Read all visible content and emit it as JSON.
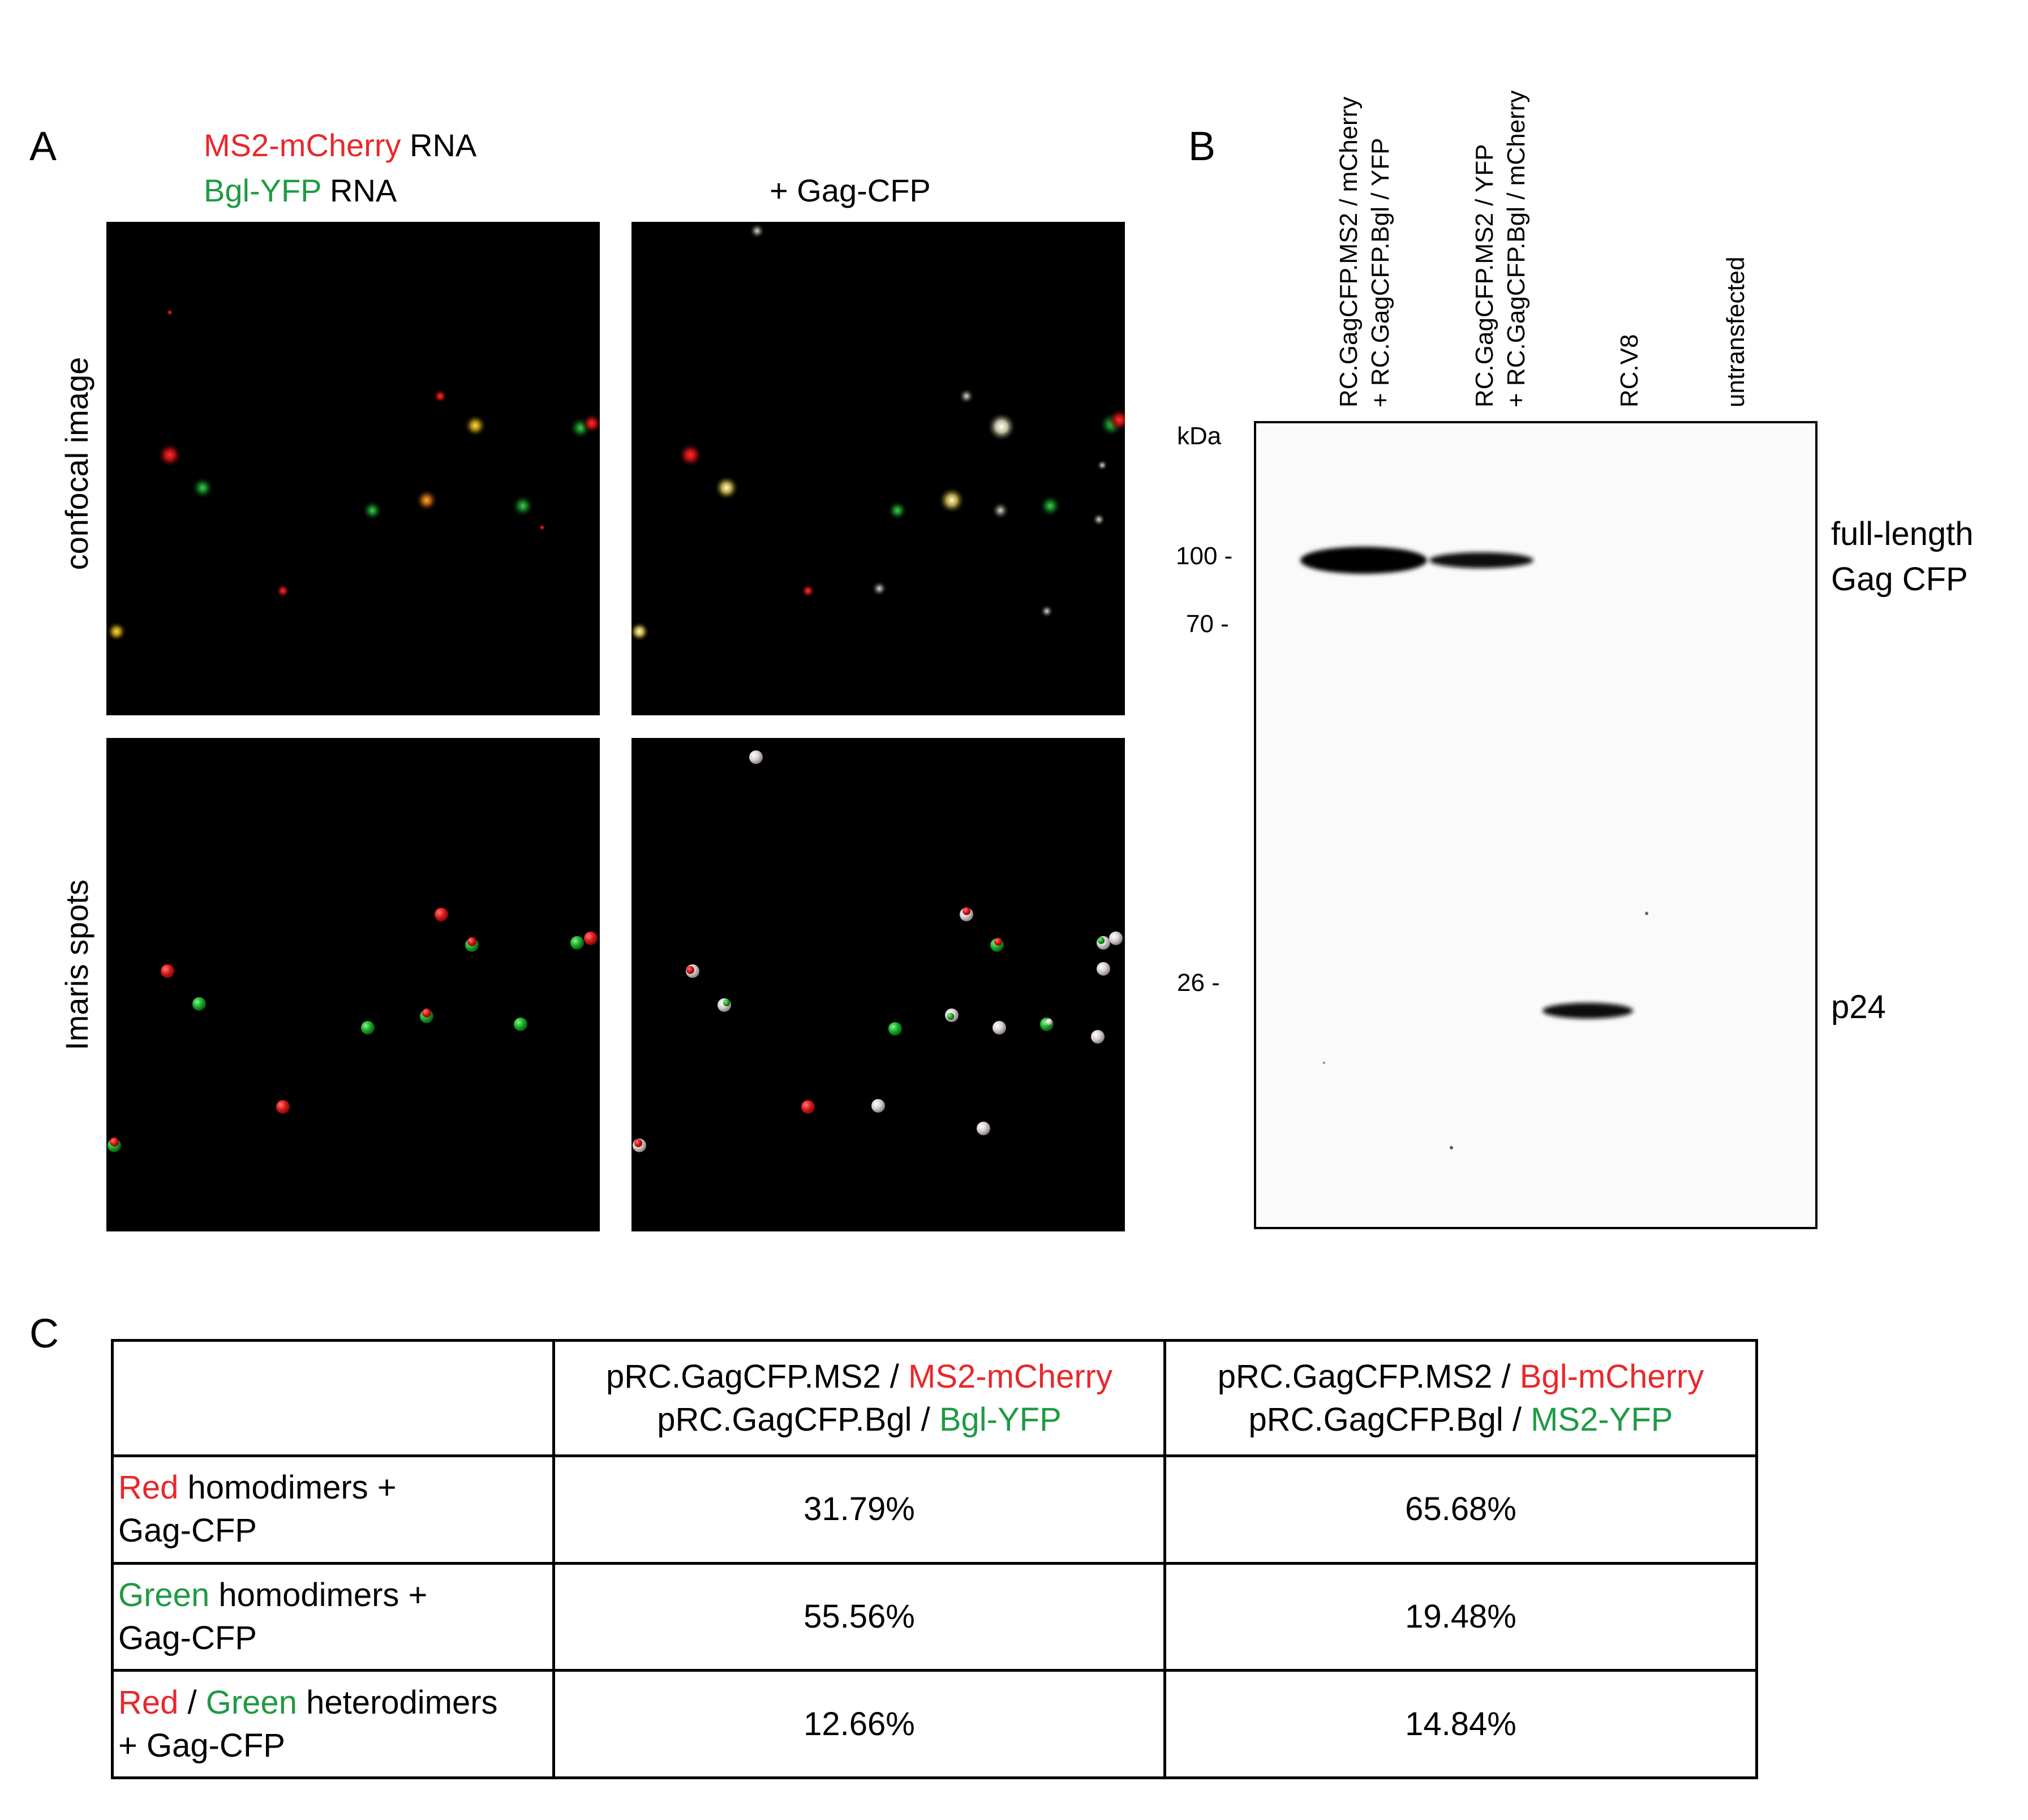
{
  "panel_a": {
    "letter": "A",
    "legend_line1": {
      "colored": "MS2-mCherry",
      "rest": " RNA"
    },
    "legend_line2": {
      "colored": "Bgl-YFP",
      "rest": " RNA"
    },
    "col2_header": "+ Gag-CFP",
    "row1_label": "confocal image",
    "row2_label": "Imaris spots",
    "colors": {
      "red": "#e8282b",
      "green": "#1f9a43",
      "background": "#000000"
    }
  },
  "panel_b": {
    "letter": "B",
    "lanes": [
      {
        "line1": "RC.GagCFP.MS2 / mCherry",
        "line2": "+ RC.GagCFP.Bgl / YFP"
      },
      {
        "line1": "RC.GagCFP.MS2 / YFP",
        "line2": "+ RC.GagCFP.Bgl / mCherry"
      },
      {
        "line1": "RC.V8",
        "line2": ""
      },
      {
        "line1": "untransfected",
        "line2": ""
      }
    ],
    "kda_label": "kDa",
    "markers": [
      {
        "label": "100 -",
        "kda": 100
      },
      {
        "label": "70 -",
        "kda": 70
      },
      {
        "label": "26 -",
        "kda": 26
      }
    ],
    "bands": [
      {
        "line1": "full-length",
        "line2": "Gag CFP"
      },
      {
        "line1": "p24",
        "line2": ""
      }
    ]
  },
  "panel_c": {
    "letter": "C",
    "header_col1": {
      "line1_plain": "pRC.GagCFP.MS2 / ",
      "line1_colored": "MS2-mCherry",
      "line2_plain": "pRC.GagCFP.Bgl / ",
      "line2_colored": "Bgl-YFP"
    },
    "header_col2": {
      "line1_plain": "pRC.GagCFP.MS2 / ",
      "line1_colored": "Bgl-mCherry",
      "line2_plain": "pRC.GagCFP.Bgl / ",
      "line2_colored": "MS2-YFP"
    },
    "rows": [
      {
        "label_colored": "Red",
        "label_rest": " homodimers +",
        "label_line2": "Gag-CFP",
        "values": [
          "31.79%",
          "65.68%"
        ]
      },
      {
        "label_colored": "Green",
        "label_rest": " homodimers +",
        "label_line2": "Gag-CFP",
        "values": [
          "55.56%",
          "19.48%"
        ]
      },
      {
        "label_red": "Red",
        "label_sep": " / ",
        "label_green": "Green",
        "label_rest": " heterodimers",
        "label_line2": "+ Gag-CFP",
        "values": [
          "12.66%",
          "14.84%"
        ]
      }
    ]
  }
}
